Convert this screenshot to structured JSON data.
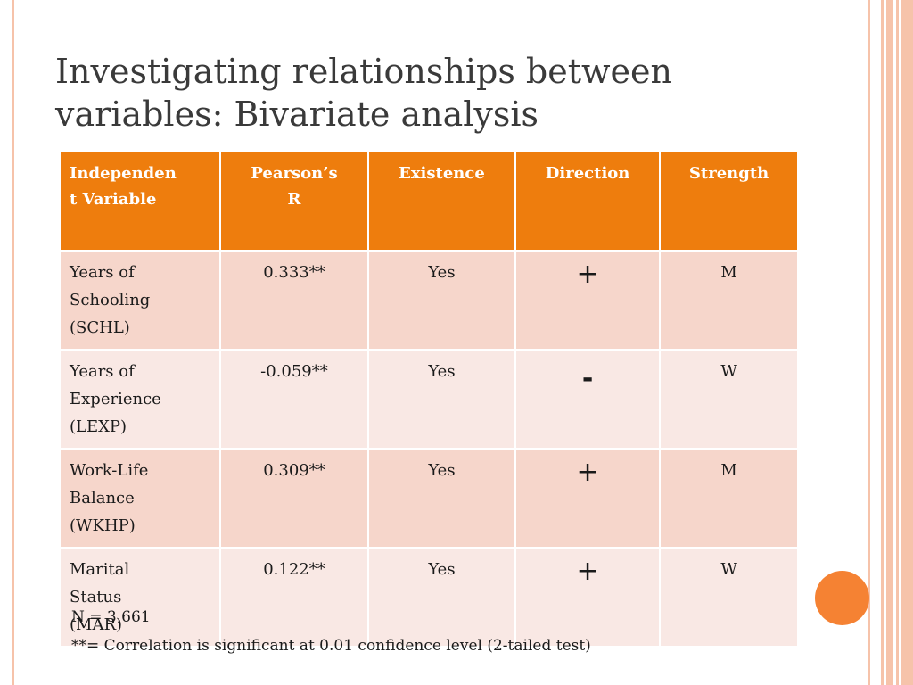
{
  "title": {
    "line1": "Investigating relationships between",
    "line2": "variables: Bivariate analysis"
  },
  "table": {
    "headers": [
      "Independen\nt Variable",
      "Pearson’s\nR",
      "Existence",
      "Direction",
      "Strength"
    ],
    "rows": [
      {
        "variable": [
          "Years of",
          "Schooling",
          "(SCHL)"
        ],
        "pearson": "0.333**",
        "existence": "Yes",
        "direction": "+",
        "strength": "M"
      },
      {
        "variable": [
          "Years of",
          "Experience",
          "(LEXP)"
        ],
        "pearson": "-0.059**",
        "existence": "Yes",
        "direction": "-",
        "strength": "W"
      },
      {
        "variable": [
          "Work-Life",
          "Balance",
          "(WKHP)"
        ],
        "pearson": "0.309**",
        "existence": "Yes",
        "direction": "+",
        "strength": "M"
      },
      {
        "variable": [
          "Marital",
          "Status",
          "(MAR)"
        ],
        "pearson": "0.122**",
        "existence": "Yes",
        "direction": "+",
        "strength": "W"
      }
    ]
  },
  "notes": {
    "n": "N = 3,661",
    "significance": "**= Correlation is significant at 0.01 confidence level (2-tailed test)"
  },
  "colors": {
    "header_bg": "#ee7d0d",
    "row_odd": "#f6d6cb",
    "row_even": "#f9e8e4",
    "accent_circle": "#f58233",
    "stripe": "#f6c3aa"
  }
}
